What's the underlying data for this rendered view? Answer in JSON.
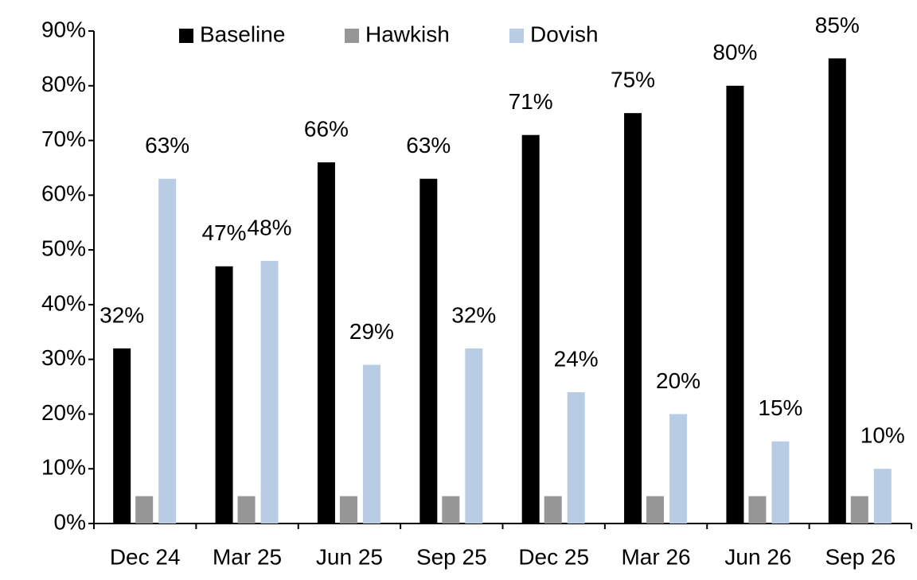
{
  "chart_data": {
    "type": "bar",
    "categories": [
      "Dec 24",
      "Mar 25",
      "Jun 25",
      "Sep 25",
      "Dec 25",
      "Mar 26",
      "Jun 26",
      "Sep 26"
    ],
    "series": [
      {
        "name": "Baseline",
        "color": "#000000",
        "values": [
          32,
          47,
          66,
          63,
          71,
          75,
          80,
          85
        ],
        "value_labels": [
          "32%",
          "47%",
          "66%",
          "63%",
          "71%",
          "75%",
          "80%",
          "85%"
        ]
      },
      {
        "name": "Hawkish",
        "color": "#969696",
        "values": [
          5,
          5,
          5,
          5,
          5,
          5,
          5,
          5
        ]
      },
      {
        "name": "Dovish",
        "color": "#b8cce4",
        "values": [
          63,
          48,
          29,
          32,
          24,
          20,
          15,
          10
        ],
        "value_labels": [
          "63%",
          "48%",
          "29%",
          "32%",
          "24%",
          "20%",
          "15%",
          "10%"
        ]
      }
    ],
    "ylim": [
      0,
      90
    ],
    "yticks": [
      {
        "value": 0,
        "label": "0%"
      },
      {
        "value": 10,
        "label": "10%"
      },
      {
        "value": 20,
        "label": "20%"
      },
      {
        "value": 30,
        "label": "30%"
      },
      {
        "value": 40,
        "label": "40%"
      },
      {
        "value": 50,
        "label": "50%"
      },
      {
        "value": 60,
        "label": "60%"
      },
      {
        "value": 70,
        "label": "70%"
      },
      {
        "value": 80,
        "label": "80%"
      },
      {
        "value": 90,
        "label": "90%"
      }
    ],
    "legend": "top"
  }
}
